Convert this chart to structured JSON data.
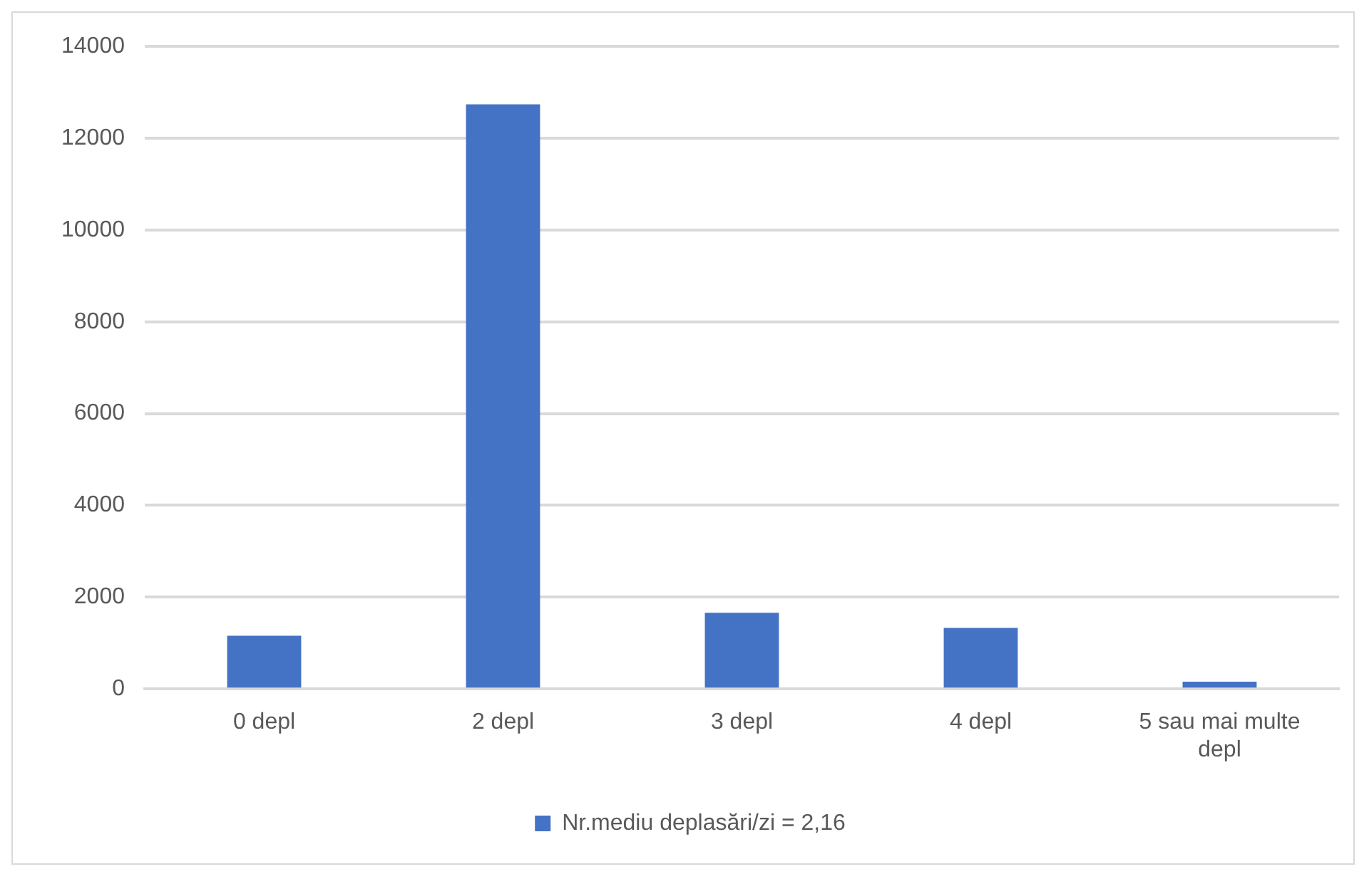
{
  "chart_data": {
    "type": "bar",
    "categories": [
      "0 depl",
      "2 depl",
      "3 depl",
      "4 depl",
      "5 sau mai multe depl"
    ],
    "series": [
      {
        "name": "Nr.mediu deplasări/zi = 2,16",
        "color": "#4472c4",
        "values": [
          1160,
          12740,
          1660,
          1330,
          160
        ]
      }
    ],
    "ylim": [
      0,
      14000
    ],
    "yticks": [
      0,
      2000,
      4000,
      6000,
      8000,
      10000,
      12000,
      14000
    ],
    "grid": "y",
    "legend": "bottom"
  }
}
